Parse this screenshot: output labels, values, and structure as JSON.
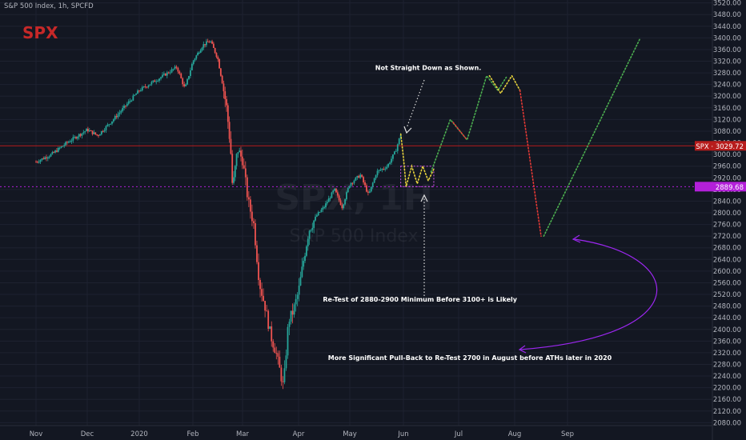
{
  "header": {
    "symbol_line": "S&P 500 Index, 1h, SPCFD",
    "logo_text": "SPX"
  },
  "watermark": {
    "big": "SPX, 1H",
    "small": "S&P 500 Index"
  },
  "colors": {
    "background": "#131722",
    "grid": "#1e2230",
    "axis_text": "#b2b5be",
    "up": "#26a69a",
    "down": "#ef5350",
    "logo": "#c62828",
    "annotation_text": "#ffffff",
    "projection_green": "#4caf50",
    "projection_red": "#e53935",
    "projection_yellow": "#e6d23c",
    "projection_white": "#e0e0e0",
    "range_box": "#d45bf2",
    "arrow_purple": "#9c27f0",
    "price_label_red": "#b71c1c",
    "price_label_purple": "#b320d9"
  },
  "chart_data": {
    "type": "line",
    "title": "S&P 500 Index, 1h, SPCFD",
    "x_ticks": [
      "Nov",
      "Dec",
      "2020",
      "Feb",
      "Mar",
      "Apr",
      "May",
      "Jun",
      "Jul",
      "Aug",
      "Sep"
    ],
    "y_ticks": [
      2080,
      2120,
      2160,
      2200,
      2240,
      2280,
      2320,
      2360,
      2400,
      2440,
      2480,
      2520,
      2560,
      2600,
      2640,
      2680,
      2720,
      2760,
      2800,
      2840,
      2880,
      2920,
      2960,
      3000,
      3040,
      3080,
      3120,
      3160,
      3200,
      3240,
      3280,
      3320,
      3360,
      3400,
      3440,
      3480,
      3520
    ],
    "ylim": [
      2070,
      3530
    ],
    "price_path": [
      {
        "t": 0.0,
        "v": 2975
      },
      {
        "t": 0.3,
        "v": 3000
      },
      {
        "t": 0.6,
        "v": 3040
      },
      {
        "t": 1.0,
        "v": 3085
      },
      {
        "t": 1.2,
        "v": 3065
      },
      {
        "t": 1.5,
        "v": 3120
      },
      {
        "t": 2.0,
        "v": 3220
      },
      {
        "t": 2.4,
        "v": 3265
      },
      {
        "t": 2.7,
        "v": 3300
      },
      {
        "t": 2.85,
        "v": 3225
      },
      {
        "t": 3.0,
        "v": 3320
      },
      {
        "t": 3.2,
        "v": 3375
      },
      {
        "t": 3.35,
        "v": 3390
      },
      {
        "t": 3.5,
        "v": 3330
      },
      {
        "t": 3.6,
        "v": 3240
      },
      {
        "t": 3.68,
        "v": 3160
      },
      {
        "t": 3.76,
        "v": 3020
      },
      {
        "t": 3.8,
        "v": 2880
      },
      {
        "t": 3.9,
        "v": 3020
      },
      {
        "t": 4.0,
        "v": 2980
      },
      {
        "t": 4.1,
        "v": 2840
      },
      {
        "t": 4.2,
        "v": 2760
      },
      {
        "t": 4.3,
        "v": 2560
      },
      {
        "t": 4.4,
        "v": 2480
      },
      {
        "t": 4.5,
        "v": 2380
      },
      {
        "t": 4.6,
        "v": 2320
      },
      {
        "t": 4.73,
        "v": 2200
      },
      {
        "t": 4.82,
        "v": 2430
      },
      {
        "t": 4.9,
        "v": 2460
      },
      {
        "t": 5.0,
        "v": 2530
      },
      {
        "t": 5.1,
        "v": 2640
      },
      {
        "t": 5.2,
        "v": 2740
      },
      {
        "t": 5.35,
        "v": 2790
      },
      {
        "t": 5.5,
        "v": 2820
      },
      {
        "t": 5.7,
        "v": 2880
      },
      {
        "t": 5.85,
        "v": 2820
      },
      {
        "t": 6.0,
        "v": 2900
      },
      {
        "t": 6.2,
        "v": 2930
      },
      {
        "t": 6.35,
        "v": 2860
      },
      {
        "t": 6.5,
        "v": 2940
      },
      {
        "t": 6.7,
        "v": 2960
      },
      {
        "t": 6.85,
        "v": 3010
      },
      {
        "t": 6.95,
        "v": 3070
      }
    ],
    "projections": [
      {
        "name": "yellow_dip",
        "points": [
          {
            "t": 6.95,
            "v": 3070
          },
          {
            "t": 7.0,
            "v": 2990
          },
          {
            "t": 7.05,
            "v": 2890
          },
          {
            "t": 7.15,
            "v": 2960
          },
          {
            "t": 7.25,
            "v": 2900
          },
          {
            "t": 7.35,
            "v": 2960
          },
          {
            "t": 7.45,
            "v": 2910
          },
          {
            "t": 7.55,
            "v": 2950
          }
        ],
        "color": "projection_yellow"
      },
      {
        "name": "green_up",
        "points": [
          {
            "t": 7.5,
            "v": 2940
          },
          {
            "t": 7.85,
            "v": 3120
          },
          {
            "t": 8.15,
            "v": 3050
          },
          {
            "t": 8.5,
            "v": 3270
          },
          {
            "t": 8.7,
            "v": 3220
          },
          {
            "t": 8.85,
            "v": 3265
          }
        ],
        "color": "projection_green"
      },
      {
        "name": "red_down",
        "points": [
          {
            "t": 7.9,
            "v": 3110
          },
          {
            "t": 8.15,
            "v": 3050
          }
        ],
        "color": "projection_red"
      },
      {
        "name": "yellow_top",
        "points": [
          {
            "t": 8.55,
            "v": 3270
          },
          {
            "t": 8.75,
            "v": 3210
          },
          {
            "t": 8.95,
            "v": 3270
          },
          {
            "t": 9.1,
            "v": 3220
          }
        ],
        "color": "projection_yellow"
      },
      {
        "name": "red_fall",
        "points": [
          {
            "t": 9.1,
            "v": 3220
          },
          {
            "t": 9.5,
            "v": 2720
          }
        ],
        "color": "projection_red"
      },
      {
        "name": "green_rally",
        "points": [
          {
            "t": 9.55,
            "v": 2720
          },
          {
            "t": 11.3,
            "v": 3400
          }
        ],
        "color": "projection_green"
      }
    ],
    "horizontal_levels": [
      {
        "value": 3029.72,
        "label": "SPX · 3029.72",
        "style": "solid",
        "color": "price_label_red"
      },
      {
        "value": 2889.68,
        "label": "2889.68",
        "style": "dotted",
        "color": "price_label_purple"
      }
    ],
    "range_box": {
      "t_start": 6.95,
      "t_end": 7.55,
      "v_low": 2890,
      "v_high": 2960
    },
    "annotations": [
      {
        "text": "Not Straight Down as Shown.",
        "t": 7.45,
        "v": 3290
      },
      {
        "text": "Re-Test of 2880-2900 Minimum Before 3100+ is Likely",
        "t": 7.3,
        "v": 2495
      },
      {
        "text": "More Significant Pull-Back to Re-Test 2700 in August before ATHs later in 2020",
        "t": 8.2,
        "v": 2295
      }
    ]
  }
}
